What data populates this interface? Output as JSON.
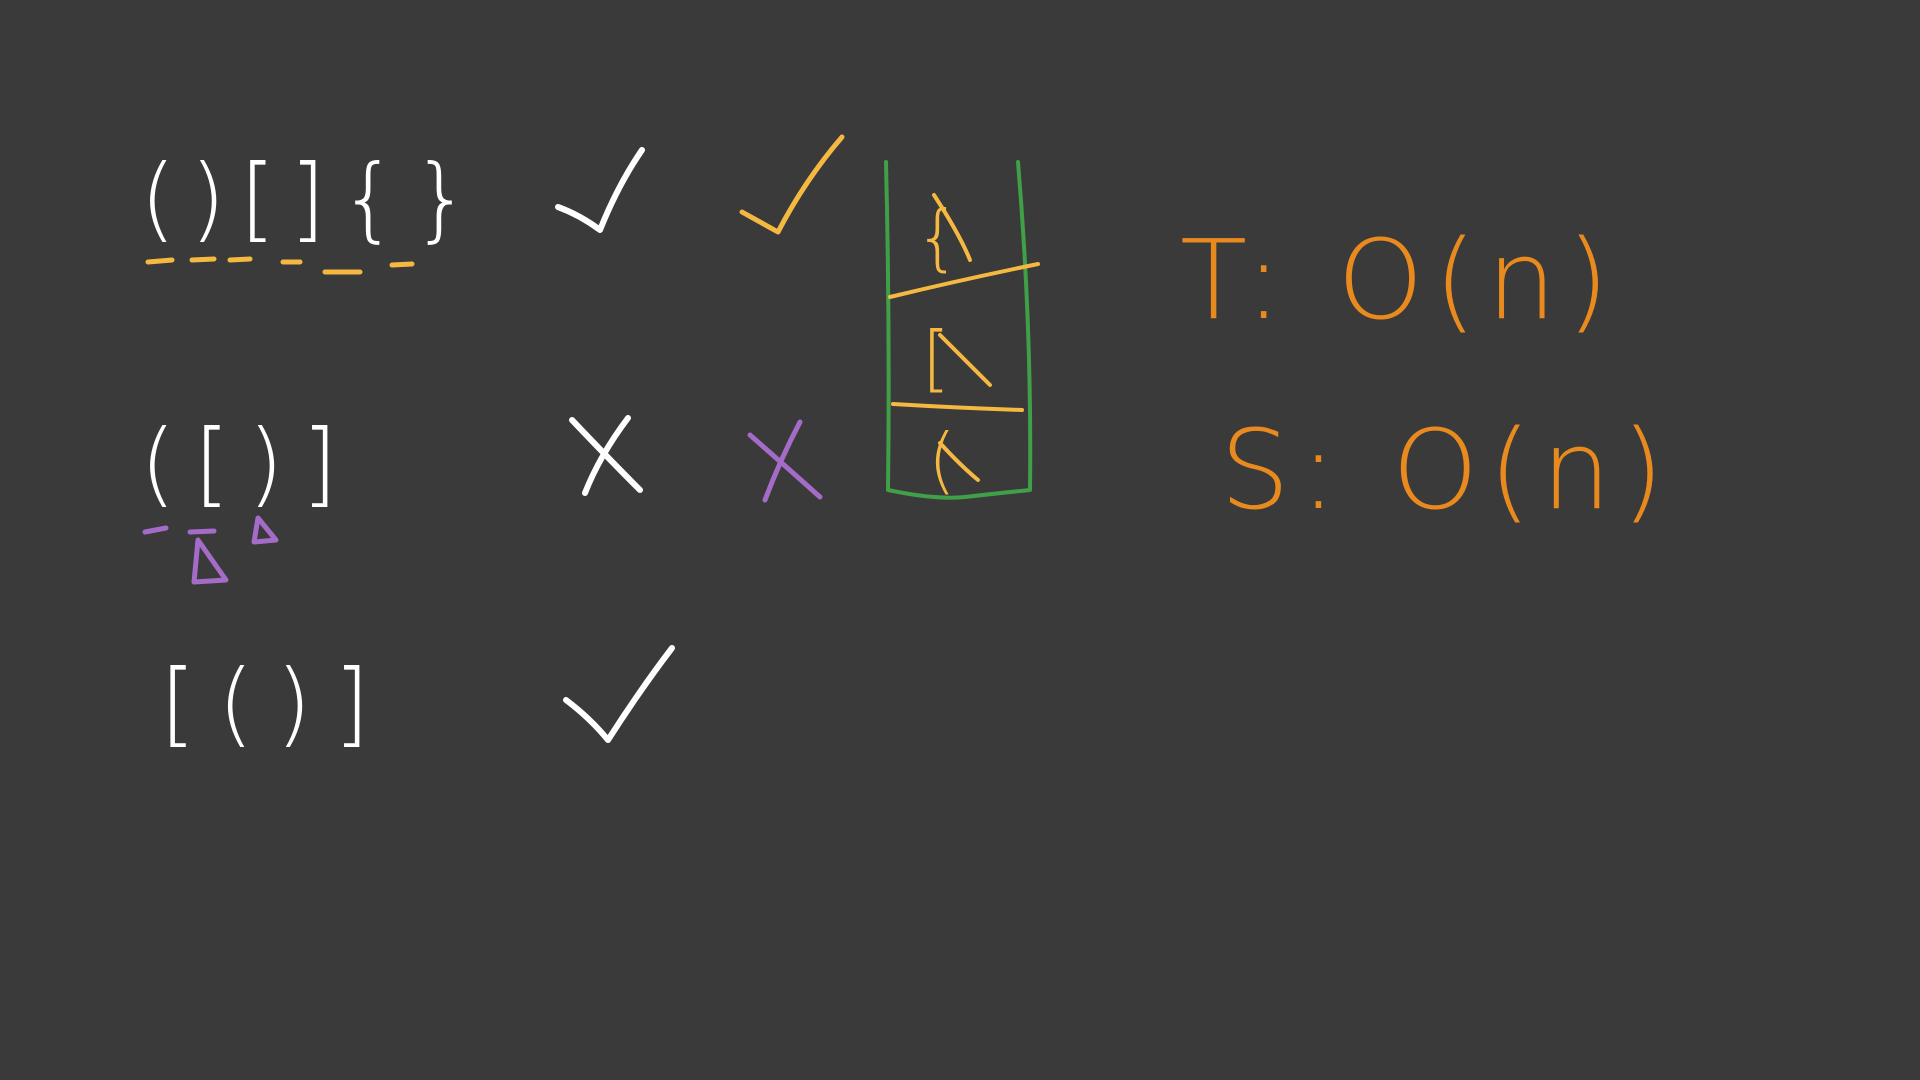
{
  "colors": {
    "background": "#3a3a3a",
    "white_ink": "#ffffff",
    "yellow_ink": "#f5b942",
    "purple_ink": "#a46cc8",
    "green_ink": "#3fa047",
    "orange_ink": "#e98a1e"
  },
  "rows": [
    {
      "expression": "()[]{}",
      "result_icon": "check-icon",
      "stack_result_icon": "check-icon"
    },
    {
      "expression": "([)]",
      "result_icon": "cross-icon",
      "stack_result_icon": "cross-icon"
    },
    {
      "expression": "[()]",
      "result_icon": "check-icon"
    }
  ],
  "stack": {
    "cells": [
      "{",
      "[",
      "("
    ]
  },
  "complexity": {
    "time": "T: O(n)",
    "space": "S: O(n)"
  }
}
